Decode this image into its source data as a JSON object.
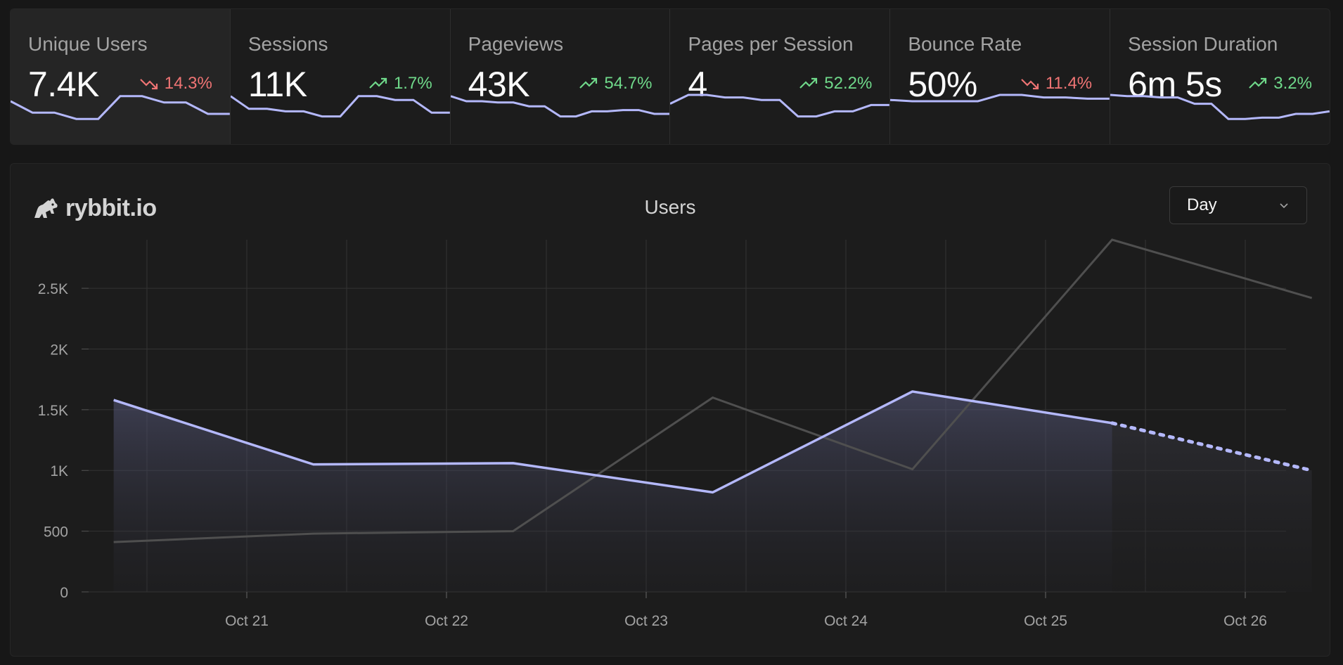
{
  "metrics": [
    {
      "title": "Unique Users",
      "value": "7.4K",
      "change": "14.3%",
      "direction": "down",
      "active": true,
      "spark": [
        0.25,
        0.7,
        0.7,
        0.95,
        0.95,
        0.05,
        0.05,
        0.3,
        0.3,
        0.75,
        0.75
      ]
    },
    {
      "title": "Sessions",
      "value": "11K",
      "change": "1.7%",
      "direction": "up",
      "active": false,
      "spark": [
        0.05,
        0.55,
        0.55,
        0.65,
        0.65,
        0.85,
        0.85,
        0.05,
        0.05,
        0.2,
        0.2,
        0.7,
        0.7
      ]
    },
    {
      "title": "Pageviews",
      "value": "43K",
      "change": "54.7%",
      "direction": "up",
      "active": false,
      "spark": [
        0.05,
        0.25,
        0.25,
        0.3,
        0.3,
        0.45,
        0.45,
        0.85,
        0.85,
        0.65,
        0.65,
        0.6,
        0.6,
        0.75,
        0.75
      ]
    },
    {
      "title": "Pages per Session",
      "value": "4",
      "change": "52.2%",
      "direction": "up",
      "active": false,
      "spark": [
        0.35,
        0.0,
        0.0,
        0.1,
        0.1,
        0.2,
        0.2,
        0.85,
        0.85,
        0.65,
        0.65,
        0.4,
        0.4
      ]
    },
    {
      "title": "Bounce Rate",
      "value": "50%",
      "change": "11.4%",
      "direction": "down",
      "active": false,
      "spark": [
        0.2,
        0.25,
        0.25,
        0.25,
        0.25,
        0.0,
        0.0,
        0.1,
        0.1,
        0.15,
        0.15
      ]
    },
    {
      "title": "Session Duration",
      "value": "6m 5s",
      "change": "3.2%",
      "direction": "up",
      "active": false,
      "spark": [
        0.0,
        0.05,
        0.05,
        0.1,
        0.1,
        0.35,
        0.35,
        0.95,
        0.95,
        0.9,
        0.9,
        0.75,
        0.75,
        0.65
      ]
    }
  ],
  "brand": {
    "name": "rybbit.io"
  },
  "chart_title": "Users",
  "dropdown": {
    "value": "Day"
  },
  "colors": {
    "current": "#b4b8fb",
    "previous": "#4f4f4f",
    "grid": "#333333",
    "up": "#6fd98a",
    "down": "#ef7474"
  },
  "chart_data": {
    "type": "line",
    "title": "Users",
    "x_tick_labels": [
      "Oct 21",
      "Oct 22",
      "Oct 23",
      "Oct 24",
      "Oct 25",
      "Oct 26"
    ],
    "y_ticks": [
      0,
      500,
      1000,
      1500,
      2000,
      2500
    ],
    "y_tick_labels": [
      "0",
      "500",
      "1K",
      "1.5K",
      "2K",
      "2.5K"
    ],
    "ylim": [
      0,
      2900
    ],
    "grid": true,
    "series": [
      {
        "role": "current",
        "x": [
          "Oct 20 08:00",
          "Oct 21 08:00",
          "Oct 22 08:00",
          "Oct 23 08:00",
          "Oct 24 08:00",
          "Oct 25 08:00",
          "Oct 26 08:00"
        ],
        "values": [
          1580,
          1050,
          1060,
          820,
          1650,
          1390,
          1000
        ],
        "projected_last": true
      },
      {
        "role": "previous",
        "x": [
          "Oct 20 08:00",
          "Oct 21 08:00",
          "Oct 22 08:00",
          "Oct 23 08:00",
          "Oct 24 08:00",
          "Oct 25 08:00",
          "Oct 26 08:00"
        ],
        "values": [
          410,
          480,
          500,
          1600,
          1010,
          2900,
          2420
        ]
      }
    ]
  }
}
